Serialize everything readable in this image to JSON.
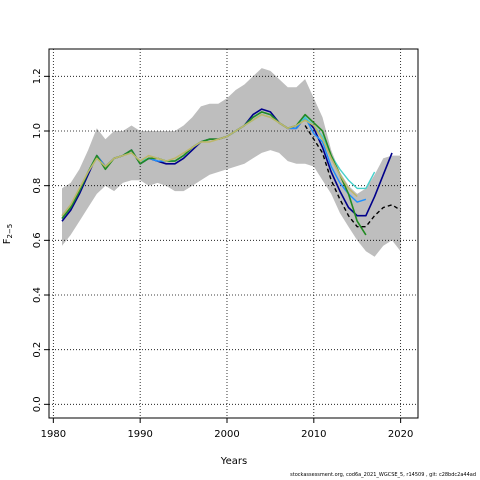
{
  "chart_data": {
    "type": "line",
    "xlabel": "Years",
    "ylabel": "F",
    "ylabel_sub": "2−5",
    "xlim": [
      1979.5,
      2022
    ],
    "ylim": [
      -0.05,
      1.3
    ],
    "xticks": [
      1980,
      1990,
      2000,
      2010,
      2020
    ],
    "yticks": [
      0.0,
      0.2,
      0.4,
      0.6,
      0.8,
      1.0,
      1.2
    ],
    "xtick_labels": [
      "1980",
      "1990",
      "2000",
      "2010",
      "2020"
    ],
    "ytick_labels": [
      "0.0",
      "0.2",
      "0.4",
      "0.6",
      "0.8",
      "1.0",
      "1.2"
    ],
    "grid": true,
    "band": {
      "color": "#bebebe",
      "x": [
        1981,
        1982,
        1983,
        1984,
        1985,
        1986,
        1987,
        1988,
        1989,
        1990,
        1991,
        1992,
        1993,
        1994,
        1995,
        1996,
        1997,
        1998,
        1999,
        2000,
        2001,
        2002,
        2003,
        2004,
        2005,
        2006,
        2007,
        2008,
        2009,
        2010,
        2011,
        2012,
        2013,
        2014,
        2015,
        2016,
        2017,
        2018,
        2019,
        2020
      ],
      "lower": [
        0.58,
        0.62,
        0.67,
        0.72,
        0.77,
        0.8,
        0.78,
        0.81,
        0.82,
        0.82,
        0.8,
        0.81,
        0.8,
        0.78,
        0.78,
        0.8,
        0.82,
        0.84,
        0.85,
        0.86,
        0.87,
        0.88,
        0.9,
        0.92,
        0.93,
        0.92,
        0.89,
        0.88,
        0.88,
        0.87,
        0.82,
        0.77,
        0.7,
        0.65,
        0.6,
        0.56,
        0.54,
        0.58,
        0.6,
        0.56
      ],
      "upper": [
        0.79,
        0.81,
        0.86,
        0.93,
        1.01,
        0.97,
        1.0,
        1.0,
        1.02,
        1.0,
        1.0,
        1.0,
        1.0,
        1.0,
        1.02,
        1.05,
        1.09,
        1.1,
        1.1,
        1.12,
        1.15,
        1.17,
        1.2,
        1.23,
        1.22,
        1.19,
        1.16,
        1.16,
        1.19,
        1.12,
        1.05,
        0.93,
        0.85,
        0.8,
        0.77,
        0.79,
        0.84,
        0.9,
        0.91,
        0.91
      ]
    },
    "series": [
      {
        "color": "#00008b",
        "style": "solid",
        "width": 1.6,
        "x": [
          1981,
          1982,
          1983,
          1984,
          1985,
          1986,
          1987,
          1988,
          1989,
          1990,
          1991,
          1992,
          1993,
          1994,
          1995,
          1996,
          1997,
          1998,
          1999,
          2000,
          2001,
          2002,
          2003,
          2004,
          2005,
          2006,
          2007,
          2008,
          2009,
          2010,
          2011,
          2012,
          2013,
          2014,
          2015,
          2016,
          2017,
          2018,
          2019
        ],
        "values": [
          0.67,
          0.71,
          0.77,
          0.84,
          0.91,
          0.87,
          0.9,
          0.91,
          0.93,
          0.88,
          0.9,
          0.89,
          0.88,
          0.88,
          0.9,
          0.93,
          0.96,
          0.97,
          0.97,
          0.98,
          1.0,
          1.02,
          1.06,
          1.08,
          1.07,
          1.03,
          1.01,
          1.01,
          1.05,
          1.01,
          0.94,
          0.85,
          0.78,
          0.72,
          0.69,
          0.69,
          0.76,
          0.84,
          0.92
        ]
      },
      {
        "color": "#1e90ff",
        "style": "solid",
        "width": 1.4,
        "x": [
          1981,
          1982,
          1983,
          1984,
          1985,
          1986,
          1987,
          1988,
          1989,
          1990,
          1991,
          1992,
          1993,
          1994,
          1995,
          1996,
          1997,
          1998,
          1999,
          2000,
          2001,
          2002,
          2003,
          2004,
          2005,
          2006,
          2007,
          2008,
          2009,
          2010,
          2011,
          2012,
          2013,
          2014,
          2015,
          2016
        ],
        "values": [
          0.68,
          0.72,
          0.78,
          0.85,
          0.91,
          0.87,
          0.9,
          0.91,
          0.93,
          0.88,
          0.9,
          0.89,
          0.89,
          0.89,
          0.91,
          0.94,
          0.96,
          0.97,
          0.97,
          0.98,
          1.0,
          1.02,
          1.05,
          1.07,
          1.06,
          1.03,
          1.01,
          1.01,
          1.05,
          0.99,
          0.96,
          0.87,
          0.81,
          0.77,
          0.74,
          0.75
        ]
      },
      {
        "color": "#48d1cc",
        "style": "solid",
        "width": 1.4,
        "x": [
          1981,
          1982,
          1983,
          1984,
          1985,
          1986,
          1987,
          1988,
          1989,
          1990,
          1991,
          1992,
          1993,
          1994,
          1995,
          1996,
          1997,
          1998,
          1999,
          2000,
          2001,
          2002,
          2003,
          2004,
          2005,
          2006,
          2007,
          2008,
          2009,
          2010,
          2011,
          2012,
          2013,
          2014,
          2015,
          2016,
          2017
        ],
        "values": [
          0.69,
          0.73,
          0.78,
          0.85,
          0.9,
          0.87,
          0.9,
          0.91,
          0.92,
          0.89,
          0.9,
          0.9,
          0.89,
          0.89,
          0.91,
          0.94,
          0.96,
          0.97,
          0.97,
          0.98,
          1.0,
          1.02,
          1.04,
          1.06,
          1.05,
          1.03,
          1.01,
          1.02,
          1.05,
          1.02,
          0.98,
          0.91,
          0.86,
          0.82,
          0.79,
          0.79,
          0.85
        ]
      },
      {
        "color": "#228b22",
        "style": "solid",
        "width": 1.6,
        "x": [
          1981,
          1982,
          1983,
          1984,
          1985,
          1986,
          1987,
          1988,
          1989,
          1990,
          1991,
          1992,
          1993,
          1994,
          1995,
          1996,
          1997,
          1998,
          1999,
          2000,
          2001,
          2002,
          2003,
          2004,
          2005,
          2006,
          2007,
          2008,
          2009,
          2010,
          2011,
          2012,
          2013,
          2014,
          2015,
          2016
        ],
        "values": [
          0.68,
          0.72,
          0.78,
          0.85,
          0.91,
          0.86,
          0.9,
          0.91,
          0.93,
          0.88,
          0.9,
          0.9,
          0.89,
          0.89,
          0.91,
          0.94,
          0.96,
          0.97,
          0.97,
          0.98,
          1.0,
          1.02,
          1.05,
          1.07,
          1.06,
          1.03,
          1.01,
          1.02,
          1.06,
          1.03,
          1.0,
          0.91,
          0.84,
          0.77,
          0.67,
          0.62
        ]
      },
      {
        "color": "#bdb76b",
        "style": "solid",
        "width": 1.6,
        "x": [
          1981,
          1982,
          1983,
          1984,
          1985,
          1986,
          1987,
          1988,
          1989,
          1990,
          1991,
          1992,
          1993,
          1994,
          1995,
          1996,
          1997,
          1998,
          1999,
          2000,
          2001,
          2002,
          2003,
          2004,
          2005,
          2006,
          2007,
          2008,
          2009,
          2010,
          2011,
          2012,
          2013,
          2014,
          2015
        ],
        "values": [
          0.69,
          0.73,
          0.79,
          0.85,
          0.9,
          0.87,
          0.9,
          0.91,
          0.92,
          0.89,
          0.91,
          0.9,
          0.89,
          0.9,
          0.92,
          0.94,
          0.96,
          0.96,
          0.97,
          0.98,
          1.0,
          1.02,
          1.04,
          1.06,
          1.05,
          1.03,
          1.01,
          1.02,
          1.04,
          1.02,
          0.97,
          0.9,
          0.84,
          0.79,
          0.76
        ]
      },
      {
        "color": "#000000",
        "style": "dashed",
        "width": 1.4,
        "x": [
          2009,
          2010,
          2011,
          2012,
          2013,
          2014,
          2015,
          2016,
          2017,
          2018,
          2019,
          2020
        ],
        "values": [
          1.02,
          0.97,
          0.92,
          0.82,
          0.75,
          0.69,
          0.65,
          0.65,
          0.69,
          0.72,
          0.73,
          0.71
        ]
      }
    ]
  },
  "footnote": "stockassessment.org, cod6a_2021_WGCSE_5, r14509 , git: c28bdc2a44ad"
}
